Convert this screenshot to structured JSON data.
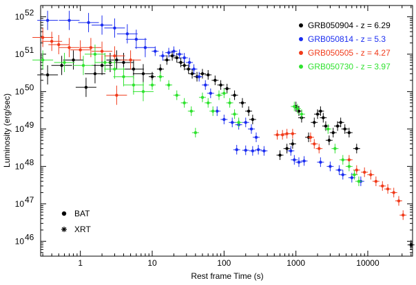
{
  "chart_data": {
    "type": "scatter",
    "xlabel": "Rest frame Time (s)",
    "ylabel": "Luminosity (erg/sec)",
    "xscale": "log",
    "yscale": "log",
    "xlim": [
      0.28,
      42000
    ],
    "ylim": [
      4e+45,
      2e+52
    ],
    "x_ticks": [
      {
        "value": 1,
        "label": "1"
      },
      {
        "value": 10,
        "label": "10"
      },
      {
        "value": 100,
        "label": "100"
      },
      {
        "value": 1000,
        "label": "1000"
      },
      {
        "value": 10000,
        "label": "10000"
      }
    ],
    "y_ticks": [
      {
        "exp": 46,
        "base": "10",
        "sup": "46"
      },
      {
        "exp": 47,
        "base": "10",
        "sup": "47"
      },
      {
        "exp": 48,
        "base": "10",
        "sup": "48"
      },
      {
        "exp": 49,
        "base": "10",
        "sup": "49"
      },
      {
        "exp": 50,
        "base": "10",
        "sup": "50"
      },
      {
        "exp": 51,
        "base": "10",
        "sup": "51"
      },
      {
        "exp": 52,
        "base": "10",
        "sup": "52"
      }
    ],
    "grid": false,
    "legend_placement": "top-right",
    "series": [
      {
        "name": "GRB050904 - z = 6.29",
        "color": "#000000",
        "points": [
          [
            0.35,
            2.8e+50
          ],
          [
            0.55,
            5e+50
          ],
          [
            0.8,
            7e+50
          ],
          [
            1.2,
            1.3e+50
          ],
          [
            1.6,
            3e+50
          ],
          [
            2.0,
            5e+50
          ],
          [
            2.6,
            6e+50
          ],
          [
            3.2,
            7e+50
          ],
          [
            4.0,
            6e+50
          ],
          [
            5.5,
            4e+50
          ],
          [
            7.5,
            3e+50
          ],
          [
            10,
            2.5e+50
          ],
          [
            13,
            4e+50
          ],
          [
            16,
            7e+50
          ],
          [
            19,
            9e+50
          ],
          [
            22,
            8e+50
          ],
          [
            25,
            6e+50
          ],
          [
            28,
            5e+50
          ],
          [
            32,
            4e+50
          ],
          [
            36,
            3e+50
          ],
          [
            42,
            2.5e+50
          ],
          [
            50,
            3e+50
          ],
          [
            60,
            2.8e+50
          ],
          [
            75,
            2e+50
          ],
          [
            90,
            1.5e+50
          ],
          [
            110,
            1.2e+50
          ],
          [
            140,
            8e+49
          ],
          [
            180,
            5e+49
          ],
          [
            220,
            3e+49
          ],
          [
            250,
            1.8e+49
          ],
          [
            600,
            2e+48
          ],
          [
            750,
            3e+48
          ],
          [
            900,
            4e+48
          ],
          [
            1000,
            4e+49
          ],
          [
            1100,
            3e+49
          ],
          [
            1200,
            2e+49
          ],
          [
            1500,
            6e+48
          ],
          [
            1800,
            1.5e+49
          ],
          [
            2000,
            2.5e+49
          ],
          [
            2200,
            3e+49
          ],
          [
            2400,
            2e+49
          ],
          [
            2600,
            1.2e+49
          ],
          [
            2900,
            5e+48
          ],
          [
            3300,
            8e+48
          ],
          [
            3800,
            1.2e+49
          ],
          [
            4200,
            1.5e+49
          ],
          [
            4800,
            1e+49
          ],
          [
            5500,
            8e+48
          ],
          [
            7000,
            3e+48
          ],
          [
            40000,
            8e+45
          ]
        ]
      },
      {
        "name": "GRB050814 - z = 5.3",
        "color": "#1a2cf0",
        "points": [
          [
            0.35,
            8e+51
          ],
          [
            0.7,
            8e+51
          ],
          [
            1.3,
            7e+51
          ],
          [
            2.0,
            6e+51
          ],
          [
            3.0,
            5e+51
          ],
          [
            4.5,
            3.5e+51
          ],
          [
            6.0,
            2.5e+51
          ],
          [
            8.0,
            1.5e+51
          ],
          [
            11,
            1.2e+51
          ],
          [
            14,
            9e+50
          ],
          [
            17,
            1.1e+51
          ],
          [
            20,
            1.2e+51
          ],
          [
            24,
            1e+51
          ],
          [
            28,
            8e+50
          ],
          [
            33,
            6e+50
          ],
          [
            38,
            4e+50
          ],
          [
            45,
            2.5e+50
          ],
          [
            55,
            1.5e+50
          ],
          [
            65,
            9e+49
          ],
          [
            80,
            3e+49
          ],
          [
            100,
            1.8e+49
          ],
          [
            130,
            1.5e+49
          ],
          [
            160,
            1.3e+49
          ],
          [
            200,
            1.5e+49
          ],
          [
            240,
            1e+49
          ],
          [
            280,
            6e+48
          ],
          [
            150,
            2.8e+48
          ],
          [
            200,
            2.7e+48
          ],
          [
            250,
            2.6e+48
          ],
          [
            300,
            2.8e+48
          ],
          [
            360,
            2.6e+48
          ],
          [
            850,
            2.6e+48
          ],
          [
            950,
            1.5e+48
          ],
          [
            1100,
            1.3e+48
          ],
          [
            1300,
            1.4e+48
          ],
          [
            2200,
            1.3e+48
          ],
          [
            3000,
            1e+48
          ],
          [
            4000,
            8e+47
          ],
          [
            4500,
            6e+47
          ],
          [
            6000,
            5e+47
          ],
          [
            8000,
            4e+47
          ]
        ]
      },
      {
        "name": "GRB050505 - z = 4.27",
        "color": "#f03a1a",
        "points": [
          [
            0.3,
            2.8e+51
          ],
          [
            0.4,
            2.2e+51
          ],
          [
            0.5,
            1.8e+51
          ],
          [
            0.7,
            1.5e+51
          ],
          [
            1.0,
            1.3e+51
          ],
          [
            1.4,
            1.5e+51
          ],
          [
            2.0,
            1.2e+51
          ],
          [
            3.0,
            9e+50
          ],
          [
            3.2,
            8e+49
          ],
          [
            5.0,
            7e+50
          ],
          [
            550,
            7e+48
          ],
          [
            650,
            7e+48
          ],
          [
            750,
            7.5e+48
          ],
          [
            900,
            7.5e+48
          ],
          [
            1600,
            6e+48
          ],
          [
            1800,
            4e+48
          ],
          [
            2100,
            3e+48
          ],
          [
            5500,
            1.5e+48
          ],
          [
            7000,
            8e+47
          ],
          [
            9000,
            7e+47
          ],
          [
            11000,
            6e+47
          ],
          [
            13000,
            4e+47
          ],
          [
            16000,
            3e+47
          ],
          [
            19000,
            2.5e+47
          ],
          [
            23000,
            2e+47
          ],
          [
            27000,
            1.2e+47
          ],
          [
            31000,
            5e+46
          ]
        ]
      },
      {
        "name": "GRB050730 - z = 3.97",
        "color": "#2fe22f",
        "points": [
          [
            0.3,
            7e+50
          ],
          [
            0.6,
            6e+50
          ],
          [
            1.1,
            5e+50
          ],
          [
            1.6,
            1e+51
          ],
          [
            2.2,
            6e+50
          ],
          [
            3.0,
            4e+50
          ],
          [
            4.0,
            2.5e+50
          ],
          [
            5.5,
            1.5e+50
          ],
          [
            7.5,
            1e+50
          ],
          [
            10,
            1.5e+50
          ],
          [
            13,
            2.5e+50
          ],
          [
            17,
            1.5e+50
          ],
          [
            22,
            8e+49
          ],
          [
            28,
            5e+49
          ],
          [
            35,
            3e+49
          ],
          [
            40,
            8e+48
          ],
          [
            50,
            7e+49
          ],
          [
            60,
            5e+49
          ],
          [
            70,
            3e+49
          ],
          [
            85,
            8e+49
          ],
          [
            100,
            9e+49
          ],
          [
            120,
            5e+49
          ],
          [
            140,
            2.5e+49
          ],
          [
            160,
            1.5e+49
          ],
          [
            950,
            4e+49
          ],
          [
            1050,
            3.5e+49
          ],
          [
            1200,
            2.5e+49
          ],
          [
            2800,
            1e+49
          ],
          [
            3500,
            3e+48
          ],
          [
            4500,
            1.5e+48
          ],
          [
            5500,
            1e+48
          ],
          [
            6500,
            6e+47
          ],
          [
            7500,
            4e+47
          ]
        ]
      }
    ],
    "legend_types": [
      {
        "label": "BAT",
        "marker": "dot"
      },
      {
        "label": "XRT",
        "marker": "star"
      }
    ]
  }
}
